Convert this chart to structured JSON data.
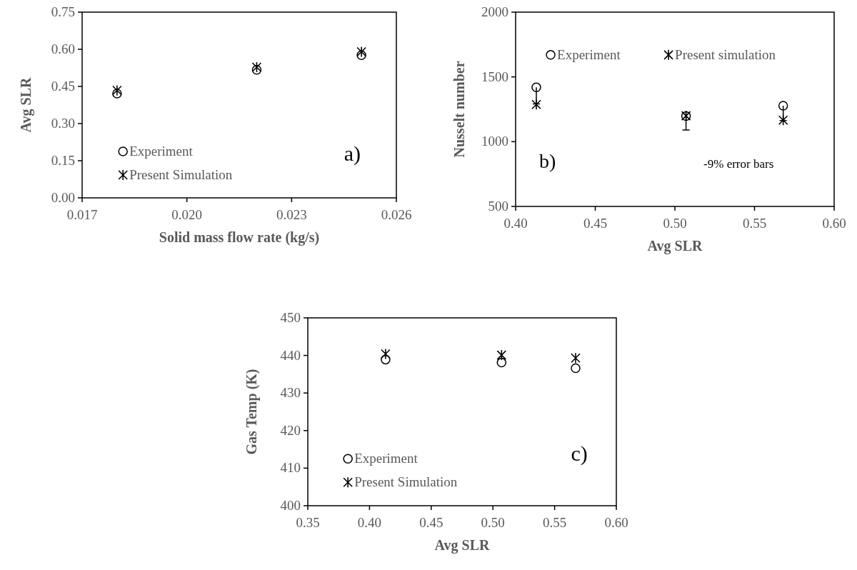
{
  "chart_data": [
    {
      "type": "scatter",
      "xlabel": "Solid mass flow rate (kg/s)",
      "ylabel": "Avg SLR",
      "xlim": [
        0.017,
        0.026
      ],
      "xticks": [
        {
          "value": 0.017,
          "label": "0.017"
        },
        {
          "value": 0.02,
          "label": "0.020"
        },
        {
          "value": 0.023,
          "label": "0.023"
        },
        {
          "value": 0.026,
          "label": "0.026"
        }
      ],
      "ylim": [
        0,
        0.75
      ],
      "yticks": [
        {
          "value": 0,
          "label": "0.00"
        },
        {
          "value": 0.15,
          "label": "0.15"
        },
        {
          "value": 0.3,
          "label": "0.30"
        },
        {
          "value": 0.45,
          "label": "0.45"
        },
        {
          "value": 0.6,
          "label": "0.60"
        },
        {
          "value": 0.75,
          "label": "0.75"
        }
      ],
      "legend": "bottom left",
      "annotations": [
        "a)"
      ],
      "x": [
        0.018,
        0.022,
        0.025
      ],
      "series": [
        {
          "name": "Experiment",
          "color": "#000000",
          "marker": "circle",
          "values": [
            0.421,
            0.517,
            0.576
          ]
        },
        {
          "name": "Present Simulation",
          "color": "#000000",
          "marker": "cross",
          "values": [
            0.434,
            0.528,
            0.59
          ]
        }
      ]
    },
    {
      "type": "scatter",
      "xlabel": "Avg SLR",
      "ylabel": "Nusselt number",
      "xlim": [
        0.4,
        0.6
      ],
      "xticks": [
        {
          "value": 0.4,
          "label": "0.40"
        },
        {
          "value": 0.45,
          "label": "0.45"
        },
        {
          "value": 0.5,
          "label": "0.50"
        },
        {
          "value": 0.55,
          "label": "0.55"
        },
        {
          "value": 0.6,
          "label": "0.60"
        }
      ],
      "ylim": [
        500,
        2000
      ],
      "yticks": [
        500,
        1000,
        1500,
        2000
      ],
      "legend": "top left",
      "annotations": [
        "b)",
        "-9% error bars"
      ],
      "x": [
        0.413,
        0.507,
        0.568
      ],
      "series": [
        {
          "name": "Experiment",
          "color": "#000000",
          "marker": "circle",
          "values": [
            1420,
            1198,
            1278
          ],
          "errors": [
            [
              1292,
              1420
            ],
            [
              1090,
              1198
            ],
            [
              1163,
              1278
            ]
          ]
        },
        {
          "name": "Present simulation",
          "color": "#000000",
          "marker": "cross",
          "values": [
            1287,
            1200,
            1166
          ]
        }
      ]
    },
    {
      "type": "scatter",
      "xlabel": "Avg SLR",
      "ylabel": "Gas Temp (K)",
      "xlim": [
        0.35,
        0.6
      ],
      "xticks": [
        {
          "value": 0.35,
          "label": "0.35"
        },
        {
          "value": 0.4,
          "label": "0.40"
        },
        {
          "value": 0.45,
          "label": "0.45"
        },
        {
          "value": 0.5,
          "label": "0.50"
        },
        {
          "value": 0.55,
          "label": "0.55"
        },
        {
          "value": 0.6,
          "label": "0.60"
        }
      ],
      "ylim": [
        400,
        450
      ],
      "yticks": [
        400,
        410,
        420,
        430,
        440,
        450
      ],
      "legend": "bottom left",
      "annotations": [
        "c)"
      ],
      "x": [
        0.413,
        0.507,
        0.567
      ],
      "series": [
        {
          "name": "Experiment",
          "color": "#000000",
          "marker": "circle",
          "values": [
            438.9,
            438.1,
            436.6
          ]
        },
        {
          "name": "Present Simulation",
          "color": "#000000",
          "marker": "cross",
          "values": [
            440.4,
            440.1,
            439.3
          ]
        }
      ]
    }
  ]
}
